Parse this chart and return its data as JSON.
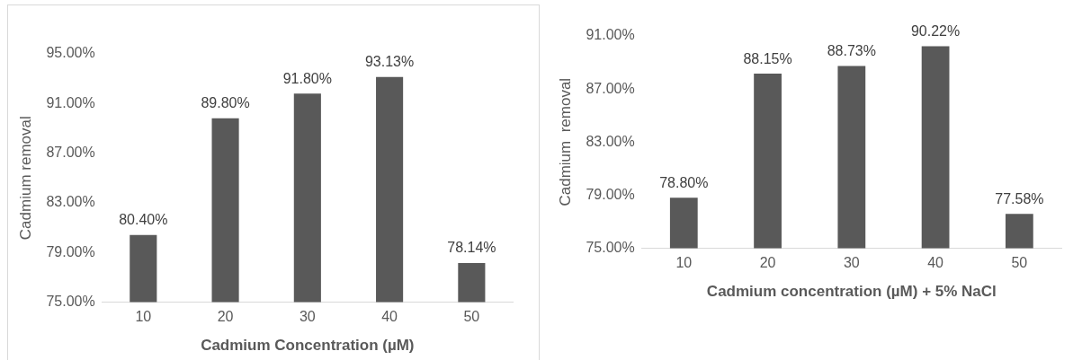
{
  "chart_data": [
    {
      "type": "bar",
      "xlabel": "Cadmium Concentration (µM)",
      "ylabel": "Cadmium removal",
      "categories": [
        "10",
        "20",
        "30",
        "40",
        "50"
      ],
      "color": "#595959",
      "values": [
        80.4,
        89.8,
        91.8,
        93.13,
        78.14
      ],
      "value_labels": [
        "80.40%",
        "89.80%",
        "91.80%",
        "93.13%",
        "78.14%"
      ],
      "ylim": [
        75,
        95
      ],
      "yticks": [
        {
          "value": 75,
          "label": "75.00%"
        },
        {
          "value": 79,
          "label": "79.00%"
        },
        {
          "value": 83,
          "label": "83.00%"
        },
        {
          "value": 87,
          "label": "87.00%"
        },
        {
          "value": 91,
          "label": "91.00%"
        },
        {
          "value": 95,
          "label": "95.00%"
        }
      ],
      "grid": false,
      "legend": false
    },
    {
      "type": "bar",
      "xlabel": "Cadmium concentration (µM) + 5% NaCl",
      "ylabel": "Cadmium  removal",
      "categories": [
        "10",
        "20",
        "30",
        "40",
        "50"
      ],
      "color": "#595959",
      "values": [
        78.8,
        88.15,
        88.73,
        90.22,
        77.58
      ],
      "value_labels": [
        "78.80%",
        "88.15%",
        "88.73%",
        "90.22%",
        "77.58%"
      ],
      "ylim": [
        75,
        91
      ],
      "yticks": [
        {
          "value": 75,
          "label": "75.00%"
        },
        {
          "value": 79,
          "label": "79.00%"
        },
        {
          "value": 83,
          "label": "83.00%"
        },
        {
          "value": 87,
          "label": "87.00%"
        },
        {
          "value": 91,
          "label": "91.00%"
        }
      ],
      "grid": false,
      "legend": false
    }
  ]
}
